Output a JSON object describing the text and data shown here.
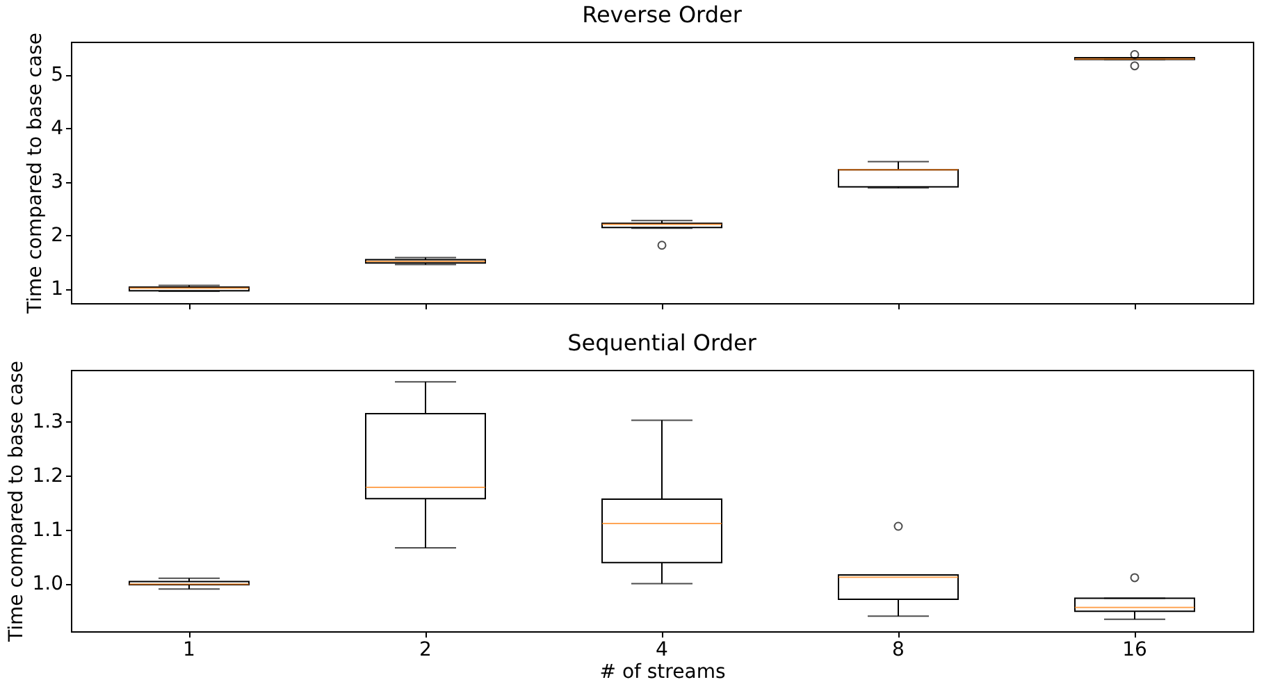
{
  "chart_data": [
    {
      "type": "box",
      "title": "Reverse Order",
      "ylabel": "Time compared to base case",
      "categories": [
        "1",
        "2",
        "4",
        "8",
        "16"
      ],
      "ylim": [
        0.73,
        5.61
      ],
      "yticks": [
        1,
        2,
        3,
        4,
        5
      ],
      "tick_labels": "y",
      "grid": false,
      "boxes": [
        {
          "low": 0.95,
          "q1": 0.96,
          "median": 1.01,
          "q3": 1.03,
          "high": 1.06
        },
        {
          "low": 1.45,
          "q1": 1.48,
          "median": 1.51,
          "q3": 1.54,
          "high": 1.58
        },
        {
          "low": 2.13,
          "q1": 2.14,
          "median": 2.2,
          "q3": 2.22,
          "high": 2.27,
          "outliers": [
            1.81
          ]
        },
        {
          "low": 2.88,
          "q1": 2.9,
          "median": 3.22,
          "q3": 3.22,
          "high": 3.37
        },
        {
          "low": 5.28,
          "q1": 5.28,
          "median": 5.29,
          "q3": 5.31,
          "high": 5.31,
          "outliers": [
            5.37,
            5.16
          ]
        }
      ]
    },
    {
      "type": "box",
      "title": "Sequential Order",
      "xlabel": "# of streams",
      "ylabel": "Time compared to base case",
      "categories": [
        "1",
        "2",
        "4",
        "8",
        "16"
      ],
      "ylim": [
        0.912,
        1.395
      ],
      "yticks": [
        {
          "value": 1,
          "label": "1.0"
        },
        {
          "value": 1.1,
          "label": "1.1"
        },
        {
          "value": 1.2,
          "label": "1.2"
        },
        {
          "value": 1.3,
          "label": "1.3"
        }
      ],
      "grid": false,
      "boxes": [
        {
          "low": 0.99,
          "q1": 0.998,
          "median": 0.999,
          "q3": 1.004,
          "high": 1.01
        },
        {
          "low": 1.066,
          "q1": 1.157,
          "median": 1.178,
          "q3": 1.314,
          "high": 1.373
        },
        {
          "low": 1.0,
          "q1": 1.039,
          "median": 1.111,
          "q3": 1.156,
          "high": 1.302
        },
        {
          "low": 0.94,
          "q1": 0.971,
          "median": 1.012,
          "q3": 1.016,
          "high": 1.016,
          "outliers": [
            1.106
          ]
        },
        {
          "low": 0.934,
          "q1": 0.949,
          "median": 0.956,
          "q3": 0.973,
          "high": 0.973,
          "outliers": [
            1.011
          ]
        }
      ]
    }
  ]
}
